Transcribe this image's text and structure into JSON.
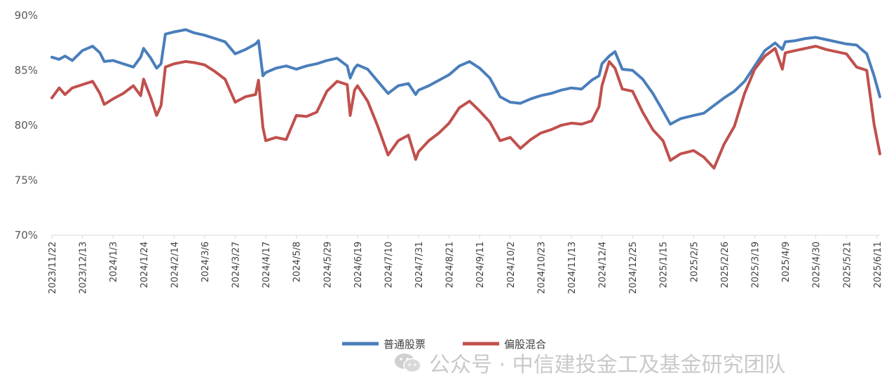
{
  "chart_data": {
    "type": "line",
    "title": "",
    "xlabel": "",
    "ylabel": "",
    "ylim": [
      70,
      90
    ],
    "y_ticks": [
      "90%",
      "85%",
      "80%",
      "75%",
      "70%"
    ],
    "x_ticks": [
      "2023/11/22",
      "2023/12/13",
      "2024/1/3",
      "2024/1/24",
      "2024/2/14",
      "2024/3/6",
      "2024/3/27",
      "2024/4/17",
      "2024/5/8",
      "2024/5/29",
      "2024/6/19",
      "2024/7/10",
      "2024/7/31",
      "2024/8/21",
      "2024/9/11",
      "2024/10/2",
      "2024/10/23",
      "2024/11/13",
      "2024/12/4",
      "2024/12/25",
      "2025/1/15",
      "2025/2/5",
      "2025/2/26",
      "2025/3/19",
      "2025/4/9",
      "2025/4/30",
      "2025/5/21",
      "2025/6/11"
    ],
    "x_end": "2025/6/13",
    "legend_position": "bottom",
    "grid": false,
    "series": [
      {
        "name": "普通股票",
        "color": "#4a7ebb",
        "points": [
          [
            "2023/11/22",
            86.2
          ],
          [
            "2023/11/27",
            86.0
          ],
          [
            "2023/12/1",
            86.3
          ],
          [
            "2023/12/6",
            85.9
          ],
          [
            "2023/12/13",
            86.8
          ],
          [
            "2023/12/20",
            87.2
          ],
          [
            "2023/12/25",
            86.6
          ],
          [
            "2023/12/28",
            85.8
          ],
          [
            "2024/1/3",
            85.9
          ],
          [
            "2024/1/10",
            85.6
          ],
          [
            "2024/1/17",
            85.3
          ],
          [
            "2024/1/22",
            86.2
          ],
          [
            "2024/1/24",
            87.0
          ],
          [
            "2024/1/29",
            86.1
          ],
          [
            "2024/2/2",
            85.2
          ],
          [
            "2024/2/5",
            85.6
          ],
          [
            "2024/2/8",
            88.3
          ],
          [
            "2024/2/14",
            88.5
          ],
          [
            "2024/2/22",
            88.7
          ],
          [
            "2024/2/28",
            88.4
          ],
          [
            "2024/3/6",
            88.2
          ],
          [
            "2024/3/13",
            87.9
          ],
          [
            "2024/3/20",
            87.6
          ],
          [
            "2024/3/27",
            86.5
          ],
          [
            "2024/4/3",
            86.9
          ],
          [
            "2024/4/10",
            87.4
          ],
          [
            "2024/4/12",
            87.7
          ],
          [
            "2024/4/15",
            84.5
          ],
          [
            "2024/4/17",
            84.8
          ],
          [
            "2024/4/24",
            85.2
          ],
          [
            "2024/5/1",
            85.4
          ],
          [
            "2024/5/8",
            85.1
          ],
          [
            "2024/5/15",
            85.4
          ],
          [
            "2024/5/22",
            85.6
          ],
          [
            "2024/5/29",
            85.9
          ],
          [
            "2024/6/5",
            86.1
          ],
          [
            "2024/6/12",
            85.4
          ],
          [
            "2024/6/14",
            84.3
          ],
          [
            "2024/6/17",
            85.2
          ],
          [
            "2024/6/19",
            85.5
          ],
          [
            "2024/6/26",
            85.1
          ],
          [
            "2024/7/3",
            84.0
          ],
          [
            "2024/7/10",
            82.9
          ],
          [
            "2024/7/17",
            83.6
          ],
          [
            "2024/7/24",
            83.8
          ],
          [
            "2024/7/29",
            82.8
          ],
          [
            "2024/7/31",
            83.2
          ],
          [
            "2024/8/7",
            83.6
          ],
          [
            "2024/8/14",
            84.1
          ],
          [
            "2024/8/21",
            84.6
          ],
          [
            "2024/8/28",
            85.4
          ],
          [
            "2024/9/4",
            85.8
          ],
          [
            "2024/9/11",
            85.2
          ],
          [
            "2024/9/18",
            84.3
          ],
          [
            "2024/9/25",
            82.6
          ],
          [
            "2024/10/2",
            82.1
          ],
          [
            "2024/10/9",
            82.0
          ],
          [
            "2024/10/16",
            82.4
          ],
          [
            "2024/10/23",
            82.7
          ],
          [
            "2024/10/30",
            82.9
          ],
          [
            "2024/11/6",
            83.2
          ],
          [
            "2024/11/13",
            83.4
          ],
          [
            "2024/11/20",
            83.3
          ],
          [
            "2024/11/27",
            84.1
          ],
          [
            "2024/12/2",
            84.5
          ],
          [
            "2024/12/4",
            85.6
          ],
          [
            "2024/12/9",
            86.3
          ],
          [
            "2024/12/13",
            86.7
          ],
          [
            "2024/12/18",
            85.1
          ],
          [
            "2024/12/25",
            85.0
          ],
          [
            "2025/1/1",
            84.2
          ],
          [
            "2025/1/8",
            82.9
          ],
          [
            "2025/1/15",
            81.3
          ],
          [
            "2025/1/20",
            80.1
          ],
          [
            "2025/1/27",
            80.6
          ],
          [
            "2025/2/5",
            80.9
          ],
          [
            "2025/2/12",
            81.1
          ],
          [
            "2025/2/19",
            81.8
          ],
          [
            "2025/2/26",
            82.5
          ],
          [
            "2025/3/5",
            83.1
          ],
          [
            "2025/3/12",
            84.0
          ],
          [
            "2025/3/19",
            85.4
          ],
          [
            "2025/3/26",
            86.8
          ],
          [
            "2025/4/2",
            87.5
          ],
          [
            "2025/4/7",
            86.9
          ],
          [
            "2025/4/9",
            87.6
          ],
          [
            "2025/4/16",
            87.7
          ],
          [
            "2025/4/23",
            87.9
          ],
          [
            "2025/4/30",
            88.0
          ],
          [
            "2025/5/7",
            87.8
          ],
          [
            "2025/5/14",
            87.6
          ],
          [
            "2025/5/21",
            87.4
          ],
          [
            "2025/5/28",
            87.3
          ],
          [
            "2025/6/4",
            86.5
          ],
          [
            "2025/6/9",
            84.5
          ],
          [
            "2025/6/13",
            82.6
          ]
        ]
      },
      {
        "name": "偏股混合",
        "color": "#c0504d",
        "points": [
          [
            "2023/11/22",
            82.5
          ],
          [
            "2023/11/27",
            83.4
          ],
          [
            "2023/12/1",
            82.8
          ],
          [
            "2023/12/6",
            83.4
          ],
          [
            "2023/12/13",
            83.7
          ],
          [
            "2023/12/20",
            84.0
          ],
          [
            "2023/12/25",
            82.9
          ],
          [
            "2023/12/28",
            81.9
          ],
          [
            "2024/1/3",
            82.4
          ],
          [
            "2024/1/10",
            82.9
          ],
          [
            "2024/1/17",
            83.6
          ],
          [
            "2024/1/22",
            82.7
          ],
          [
            "2024/1/24",
            84.2
          ],
          [
            "2024/1/29",
            82.5
          ],
          [
            "2024/2/2",
            80.9
          ],
          [
            "2024/2/5",
            81.8
          ],
          [
            "2024/2/8",
            85.3
          ],
          [
            "2024/2/14",
            85.6
          ],
          [
            "2024/2/22",
            85.8
          ],
          [
            "2024/2/28",
            85.7
          ],
          [
            "2024/3/6",
            85.5
          ],
          [
            "2024/3/13",
            84.9
          ],
          [
            "2024/3/20",
            84.2
          ],
          [
            "2024/3/27",
            82.1
          ],
          [
            "2024/4/3",
            82.6
          ],
          [
            "2024/4/10",
            82.8
          ],
          [
            "2024/4/12",
            84.1
          ],
          [
            "2024/4/15",
            79.8
          ],
          [
            "2024/4/17",
            78.6
          ],
          [
            "2024/4/24",
            78.9
          ],
          [
            "2024/5/1",
            78.7
          ],
          [
            "2024/5/8",
            80.9
          ],
          [
            "2024/5/15",
            80.8
          ],
          [
            "2024/5/22",
            81.2
          ],
          [
            "2024/5/29",
            83.1
          ],
          [
            "2024/6/5",
            84.0
          ],
          [
            "2024/6/12",
            83.7
          ],
          [
            "2024/6/14",
            80.9
          ],
          [
            "2024/6/17",
            83.2
          ],
          [
            "2024/6/19",
            83.6
          ],
          [
            "2024/6/26",
            82.2
          ],
          [
            "2024/7/3",
            79.9
          ],
          [
            "2024/7/10",
            77.3
          ],
          [
            "2024/7/17",
            78.6
          ],
          [
            "2024/7/24",
            79.1
          ],
          [
            "2024/7/29",
            76.9
          ],
          [
            "2024/7/31",
            77.6
          ],
          [
            "2024/8/7",
            78.6
          ],
          [
            "2024/8/14",
            79.3
          ],
          [
            "2024/8/21",
            80.2
          ],
          [
            "2024/8/28",
            81.6
          ],
          [
            "2024/9/4",
            82.2
          ],
          [
            "2024/9/11",
            81.3
          ],
          [
            "2024/9/18",
            80.3
          ],
          [
            "2024/9/25",
            78.6
          ],
          [
            "2024/10/2",
            78.9
          ],
          [
            "2024/10/9",
            77.9
          ],
          [
            "2024/10/16",
            78.7
          ],
          [
            "2024/10/23",
            79.3
          ],
          [
            "2024/10/30",
            79.6
          ],
          [
            "2024/11/6",
            80.0
          ],
          [
            "2024/11/13",
            80.2
          ],
          [
            "2024/11/20",
            80.1
          ],
          [
            "2024/11/27",
            80.4
          ],
          [
            "2024/12/2",
            81.7
          ],
          [
            "2024/12/4",
            83.6
          ],
          [
            "2024/12/9",
            85.8
          ],
          [
            "2024/12/13",
            85.2
          ],
          [
            "2024/12/18",
            83.3
          ],
          [
            "2024/12/25",
            83.1
          ],
          [
            "2025/1/1",
            81.2
          ],
          [
            "2025/1/8",
            79.6
          ],
          [
            "2025/1/15",
            78.6
          ],
          [
            "2025/1/20",
            76.8
          ],
          [
            "2025/1/27",
            77.4
          ],
          [
            "2025/2/5",
            77.7
          ],
          [
            "2025/2/12",
            77.1
          ],
          [
            "2025/2/19",
            76.1
          ],
          [
            "2025/2/26",
            78.3
          ],
          [
            "2025/3/5",
            79.9
          ],
          [
            "2025/3/12",
            82.9
          ],
          [
            "2025/3/19",
            85.1
          ],
          [
            "2025/3/26",
            86.3
          ],
          [
            "2025/4/2",
            87.0
          ],
          [
            "2025/4/7",
            85.1
          ],
          [
            "2025/4/9",
            86.6
          ],
          [
            "2025/4/16",
            86.8
          ],
          [
            "2025/4/23",
            87.0
          ],
          [
            "2025/4/30",
            87.2
          ],
          [
            "2025/5/7",
            86.9
          ],
          [
            "2025/5/14",
            86.7
          ],
          [
            "2025/5/21",
            86.5
          ],
          [
            "2025/5/28",
            85.3
          ],
          [
            "2025/6/4",
            85.0
          ],
          [
            "2025/6/9",
            80.1
          ],
          [
            "2025/6/13",
            77.4
          ]
        ]
      }
    ]
  },
  "watermark": {
    "icon": "wechat-icon",
    "text": "公众号 · 中信建投金工及基金研究团队"
  }
}
